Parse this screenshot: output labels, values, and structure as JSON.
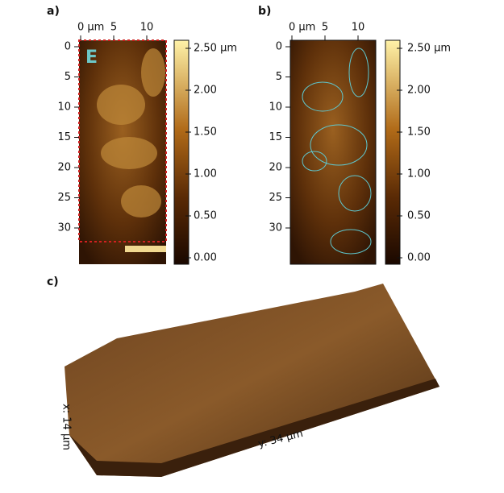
{
  "panels": [
    {
      "label": "a)",
      "x_ticks": [
        "0 µm",
        "5",
        "10"
      ],
      "y_ticks": [
        "0",
        "5",
        "10",
        "15",
        "20",
        "25",
        "30"
      ],
      "region_label": "E",
      "colorbar_ticks": [
        "2.50 µm",
        "2.00",
        "1.50",
        "1.00",
        "0.50",
        "0.00"
      ]
    },
    {
      "label": "b)",
      "x_ticks": [
        "0 µm",
        "5",
        "10"
      ],
      "y_ticks": [
        "0",
        "5",
        "10",
        "15",
        "20",
        "25",
        "30"
      ],
      "colorbar_ticks": [
        "2.50 µm",
        "2.00",
        "1.50",
        "1.00",
        "0.50",
        "0.00"
      ]
    },
    {
      "label": "c)",
      "x_axis": "x: 14 µm",
      "y_axis": "y: 34 µm"
    }
  ]
}
